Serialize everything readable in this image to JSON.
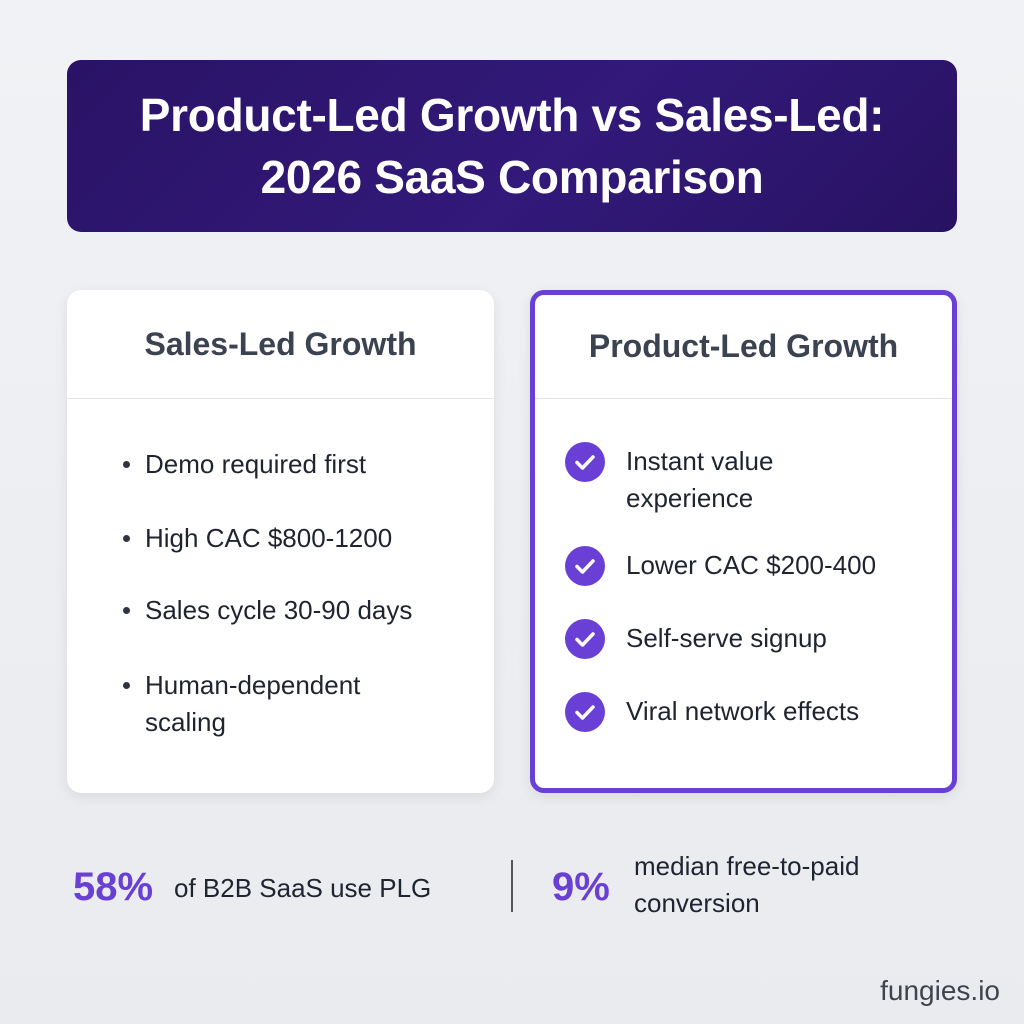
{
  "header": {
    "title_lines": [
      "Product-Led Growth vs Sales-Led:",
      "2026 SaaS Comparison"
    ]
  },
  "cards": [
    {
      "title": "Sales-Led Growth",
      "items": [
        "Demo required first",
        "High CAC $800-1200",
        "Sales cycle 30-90 days",
        "Human-dependent scaling"
      ]
    },
    {
      "title": "Product-Led Growth",
      "items": [
        "Instant value experience",
        "Lower CAC $200-400",
        "Self-serve signup",
        "Viral network effects"
      ]
    }
  ],
  "stats": [
    {
      "value": "58%",
      "label": "of B2B SaaS use PLG"
    },
    {
      "value": "9%",
      "label": "median free-to-paid conversion"
    }
  ],
  "footer": {
    "brand": "fungies.io"
  }
}
